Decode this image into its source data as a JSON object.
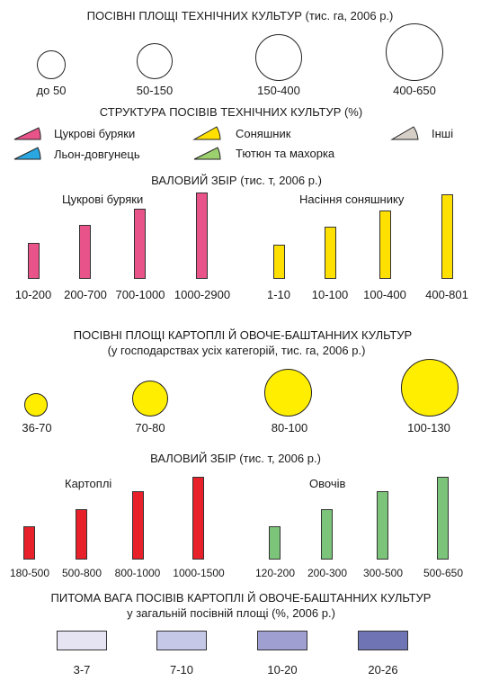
{
  "technical_crops": {
    "area_title": "ПОСІВНІ ПЛОЩІ ТЕХНІЧНИХ КУЛЬТУР (тис. га, 2006 р.)",
    "area_sizes": [
      "до 50",
      "50-150",
      "150-400",
      "400-650"
    ],
    "structure_title": "СТРУКТУРА ПОСІВІВ ТЕХНІЧНИХ КУЛЬТУР (%)",
    "structure_legend": [
      {
        "label": "Цукрові буряки",
        "color": "#e8538a"
      },
      {
        "label": "Соняшник",
        "color": "#ffe000"
      },
      {
        "label": "Інші",
        "color": "#d6cfc8"
      },
      {
        "label": "Льон-довгунець",
        "color": "#2aa6e0"
      },
      {
        "label": "Тютюн та махорка",
        "color": "#9ccf6e"
      }
    ],
    "harvest_title": "ВАЛОВИЙ ЗБІР (тис. т, 2006 р.)",
    "sugar_beet": {
      "title": "Цукрові буряки",
      "color": "#e8538a",
      "categories": [
        "10-200",
        "200-700",
        "700-1000",
        "1000-2900"
      ],
      "bar_levels": [
        1,
        2,
        3,
        4
      ]
    },
    "sunflower": {
      "title": "Насіння соняшнику",
      "color": "#ffe000",
      "categories": [
        "1-10",
        "10-100",
        "100-400",
        "400-801"
      ],
      "bar_levels": [
        1,
        2,
        3,
        4
      ]
    }
  },
  "potato_vegetables": {
    "area_title": "ПОСІВНІ ПЛОЩІ КАРТОПЛІ Й ОВОЧЕ-БАШТАННИХ КУЛЬТУР",
    "area_subtitle": "(у господарствах усіх категорій, тис. га, 2006 р.)",
    "circle_color": "#ffee00",
    "area_sizes": [
      "36-70",
      "70-80",
      "80-100",
      "100-130"
    ],
    "harvest_title": "ВАЛОВИЙ ЗБІР (тис. т, 2006 р.)",
    "potatoes": {
      "title": "Картоплі",
      "color": "#e8202a",
      "categories": [
        "180-500",
        "500-800",
        "800-1000",
        "1000-1500"
      ],
      "bar_levels": [
        1,
        2,
        3,
        4
      ]
    },
    "vegetables": {
      "title": "Овочів",
      "color": "#7cc47a",
      "categories": [
        "120-200",
        "200-300",
        "300-500",
        "500-650"
      ],
      "bar_levels": [
        1,
        2,
        3,
        4
      ]
    },
    "share_title": "ПИТОМА ВАГА ПОСІВІВ КАРТОПЛІ Й ОВОЧЕ-БАШТАННИХ КУЛЬТУР",
    "share_subtitle": "у загальній посівній площі (%, 2006 р.)",
    "share_scale": [
      {
        "label": "3-7",
        "color": "#e6e3f3"
      },
      {
        "label": "7-10",
        "color": "#c6c8e8"
      },
      {
        "label": "10-20",
        "color": "#a09fd2"
      },
      {
        "label": "20-26",
        "color": "#6f74b4"
      }
    ]
  }
}
